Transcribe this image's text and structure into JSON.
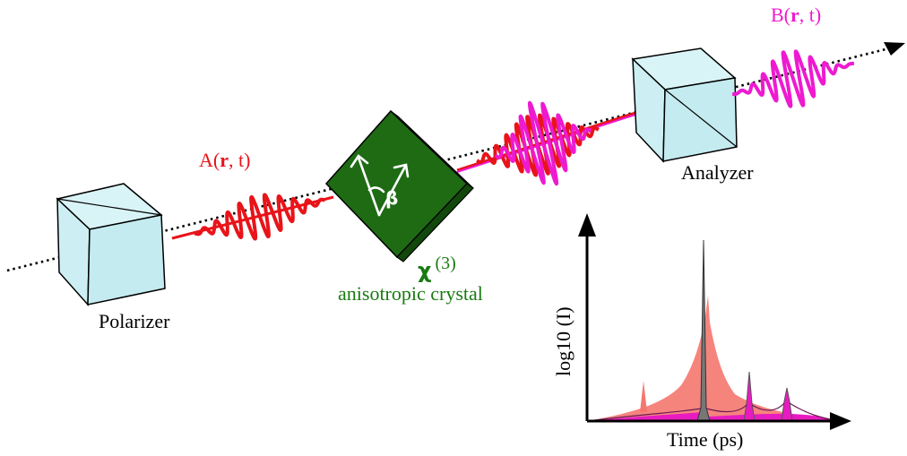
{
  "labels": {
    "input_field": "A(r, t)",
    "input_field_parts": {
      "name": "A(",
      "bold": "r",
      "rest": ", t)"
    },
    "output_field": "B(r, t)",
    "output_field_parts": {
      "name": "B(",
      "bold": "r",
      "rest": ", t)"
    },
    "polarizer": "Polarizer",
    "analyzer": "Analyzer",
    "chi_symbol": "χ",
    "chi_order": "(3)",
    "crystal": "anisotropic crystal",
    "angle": "β"
  },
  "plot": {
    "xlabel": "Time (ps)",
    "ylabel": "log10 (I)"
  },
  "colors": {
    "input_pulse": "#e8141a",
    "output_pulse": "#ee1ad0",
    "crystal": "#1e6b14",
    "crystal_label": "#1a7a12",
    "cube": "#cdeff3",
    "red_fill": "#f4776f",
    "magenta_fill": "#e81bc0"
  }
}
